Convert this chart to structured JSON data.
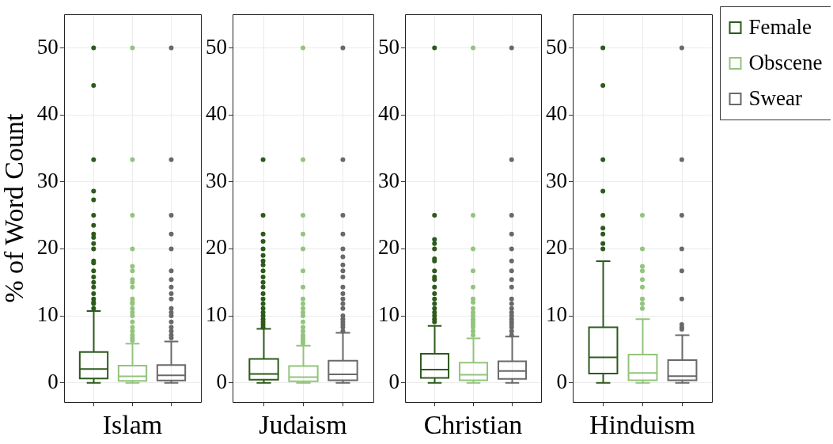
{
  "chart_data": [
    {
      "type": "box",
      "ylabel": "% of Word Count",
      "categories": [
        "Islam"
      ],
      "ylim": [
        -2.9,
        55
      ],
      "yticks": [
        0,
        10,
        20,
        30,
        40,
        50
      ],
      "grid": true,
      "marker": "circle",
      "series": [
        {
          "color": "#2d5a1b",
          "boxes": [
            {
              "low": 0,
              "q1": 0.65,
              "median": 2.05,
              "q3": 4.6,
              "high": 10.7,
              "outliers": [
                50,
                44.4,
                33.3,
                28.6,
                27.3,
                25,
                23.5,
                22.2,
                21.7,
                20.8,
                20,
                18.2,
                17.9,
                16.7,
                15.8,
                15,
                14.3,
                13.3,
                12.5,
                12,
                11.8,
                11.1
              ]
            }
          ]
        },
        {
          "color": "#93c47d",
          "boxes": [
            {
              "low": 0,
              "q1": 0.27,
              "median": 0.95,
              "q3": 2.55,
              "high": 5.85,
              "outliers": [
                50,
                33.3,
                25,
                20,
                17.4,
                16.7,
                15.4,
                15,
                14.3,
                12.5,
                12,
                11.8,
                11.1,
                10.5,
                10,
                9.1,
                8.3,
                7.7,
                7.1,
                6.7,
                6.3
              ]
            }
          ]
        },
        {
          "color": "#696969",
          "boxes": [
            {
              "low": 0,
              "q1": 0.34,
              "median": 1.1,
              "q3": 2.66,
              "high": 6.15,
              "outliers": [
                50,
                33.3,
                25,
                22.2,
                20,
                16.7,
                15.4,
                14.3,
                13.3,
                12.5,
                11.1,
                10.5,
                10,
                9.1,
                8.3,
                7.7,
                7.1,
                6.7
              ]
            }
          ]
        }
      ]
    },
    {
      "type": "box",
      "categories": [
        "Judaism"
      ],
      "ylim": [
        -2.9,
        55
      ],
      "yticks": [
        0,
        10,
        20,
        30,
        40,
        50
      ],
      "grid": true,
      "marker": "circle",
      "series": [
        {
          "color": "#2d5a1b",
          "boxes": [
            {
              "low": 0,
              "q1": 0.45,
              "median": 1.33,
              "q3": 3.57,
              "high": 8.05,
              "outliers": [
                33.3,
                25,
                22.2,
                21.1,
                20,
                19,
                18.2,
                17.6,
                16.7,
                15.8,
                15,
                14.3,
                13.3,
                12.5,
                11.8,
                11.1,
                10.5,
                10,
                9.5,
                9.1,
                8.7,
                8.3
              ]
            }
          ]
        },
        {
          "color": "#93c47d",
          "boxes": [
            {
              "low": 0,
              "q1": 0.23,
              "median": 0.84,
              "q3": 2.5,
              "high": 5.54,
              "outliers": [
                50,
                33.3,
                25,
                22.2,
                20,
                16.7,
                14.3,
                12.5,
                11.8,
                11.1,
                10.5,
                10,
                9.1,
                8.3,
                7.7,
                7.1,
                6.7,
                6.3,
                5.9
              ]
            }
          ]
        },
        {
          "color": "#696969",
          "boxes": [
            {
              "low": 0,
              "q1": 0.38,
              "median": 1.25,
              "q3": 3.3,
              "high": 7.45,
              "outliers": [
                50,
                33.3,
                25,
                22.2,
                20,
                18.8,
                17.6,
                16.7,
                15.8,
                14.3,
                13.3,
                12.5,
                11.8,
                11.1,
                10,
                9.5,
                9.1,
                8.7,
                8.3,
                7.7
              ]
            }
          ]
        }
      ]
    },
    {
      "type": "box",
      "categories": [
        "Christian"
      ],
      "ylim": [
        -2.9,
        55
      ],
      "yticks": [
        0,
        10,
        20,
        30,
        40,
        50
      ],
      "grid": true,
      "marker": "circle",
      "series": [
        {
          "color": "#2d5a1b",
          "boxes": [
            {
              "low": 0,
              "q1": 0.72,
              "median": 1.97,
              "q3": 4.33,
              "high": 8.5,
              "outliers": [
                50,
                25,
                21.4,
                20.8,
                20,
                18.5,
                18.2,
                16.7,
                15.8,
                15.4,
                14.3,
                13.3,
                12.5,
                11.8,
                11.1,
                10.5,
                10,
                9.5,
                9.1
              ]
            }
          ]
        },
        {
          "color": "#93c47d",
          "boxes": [
            {
              "low": 0,
              "q1": 0.38,
              "median": 1.2,
              "q3": 3,
              "high": 6.65,
              "outliers": [
                50,
                25,
                20,
                16.7,
                14.3,
                12.5,
                12,
                11.1,
                10.5,
                10,
                9.5,
                9.1,
                8.7,
                8.3,
                7.7,
                7.1
              ]
            }
          ]
        },
        {
          "color": "#696969",
          "boxes": [
            {
              "low": 0,
              "q1": 0.57,
              "median": 1.75,
              "q3": 3.2,
              "high": 6.9,
              "outliers": [
                50,
                33.3,
                25,
                22.2,
                20,
                18.2,
                16.7,
                15.4,
                14.3,
                12.5,
                11.8,
                11.1,
                10.5,
                10,
                9.5,
                9.1,
                8.7,
                8.3,
                7.7,
                7.1
              ]
            }
          ]
        }
      ]
    },
    {
      "type": "box",
      "categories": [
        "Hinduism"
      ],
      "ylim": [
        -2.9,
        55
      ],
      "yticks": [
        0,
        10,
        20,
        30,
        40,
        50
      ],
      "grid": true,
      "marker": "circle",
      "legend": "right",
      "series": [
        {
          "name": "Female",
          "color": "#2d5a1b",
          "boxes": [
            {
              "low": 0,
              "q1": 1.37,
              "median": 3.8,
              "q3": 8.3,
              "high": 18.15,
              "outliers": [
                50,
                44.4,
                33.3,
                28.6,
                25,
                23.1,
                22.2,
                20.8,
                20
              ]
            }
          ]
        },
        {
          "name": "Obscene",
          "color": "#93c47d",
          "boxes": [
            {
              "low": 0,
              "q1": 0.38,
              "median": 1.48,
              "q3": 4.2,
              "high": 9.5,
              "outliers": [
                25,
                20,
                17.4,
                16.7,
                15.4,
                14.3,
                12.5,
                11.8,
                11.1
              ]
            }
          ]
        },
        {
          "name": "Swear",
          "color": "#696969",
          "boxes": [
            {
              "low": 0,
              "q1": 0.38,
              "median": 1,
              "q3": 3.4,
              "high": 7.1,
              "outliers": [
                50,
                33.3,
                25,
                20,
                16.7,
                12.5,
                8.7,
                8.3,
                8
              ]
            }
          ]
        }
      ]
    }
  ]
}
